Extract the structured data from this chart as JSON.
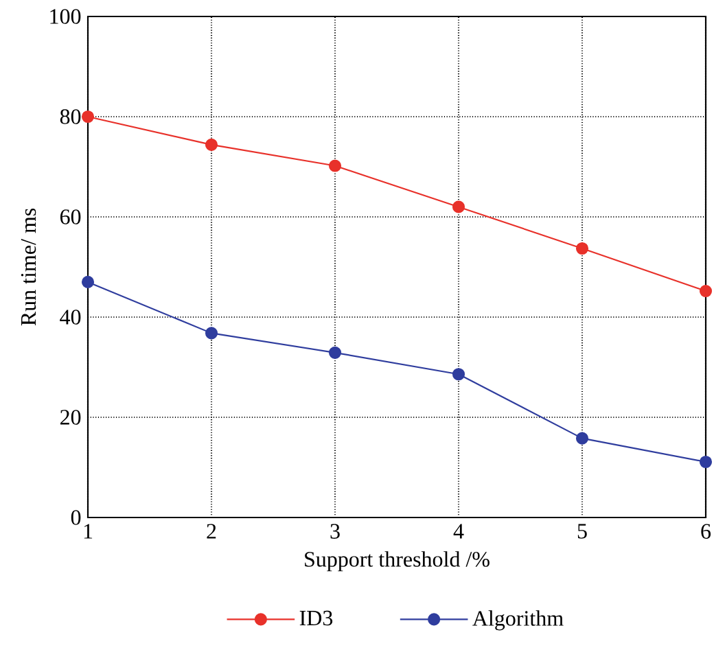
{
  "chart_data": {
    "type": "line",
    "xlabel": "Support threshold /%",
    "ylabel": "Run time/ ms",
    "x": [
      1,
      2,
      3,
      4,
      5,
      6
    ],
    "series": [
      {
        "name": "ID3",
        "color": "#e8312a",
        "values": [
          80,
          74.4,
          70.2,
          62,
          53.7,
          45.2
        ]
      },
      {
        "name": "Algorithm",
        "color": "#2f3d9e",
        "values": [
          47,
          36.8,
          32.9,
          28.6,
          15.8,
          11.1
        ]
      }
    ],
    "xlim": [
      1,
      6
    ],
    "ylim": [
      0,
      100
    ],
    "xticks": [
      1,
      2,
      3,
      4,
      5,
      6
    ],
    "yticks": [
      0,
      20,
      40,
      60,
      80,
      100
    ],
    "grid": true,
    "legend": "bottom",
    "marker": "circle",
    "line_style": "solid"
  }
}
